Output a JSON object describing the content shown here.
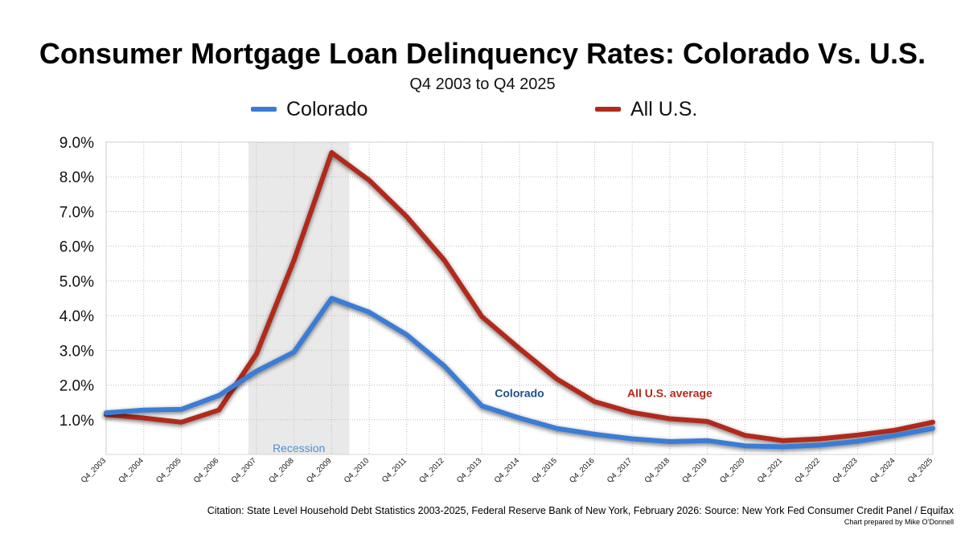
{
  "chart_data": {
    "type": "line",
    "title": "Consumer Mortgage Loan Delinquency Rates: Colorado Vs. U.S.",
    "subtitle": "Q4 2003 to Q4 2025",
    "categories": [
      "Q4_2003",
      "Q4_2004",
      "Q4_2005",
      "Q4_2006",
      "Q4_2007",
      "Q4_2008",
      "Q4_2009",
      "Q4_2010",
      "Q4_2011",
      "Q4_2012",
      "Q4_2013",
      "Q4_2014",
      "Q4_2015",
      "Q4_2016",
      "Q4_2017",
      "Q4_2018",
      "Q4_2019",
      "Q4_2020",
      "Q4_2021",
      "Q4_2022",
      "Q4_2023",
      "Q4_2024",
      "Q4_2025"
    ],
    "series": [
      {
        "name": "Colorado",
        "color": "#3a7bd5",
        "values": [
          1.2,
          1.28,
          1.3,
          1.7,
          2.4,
          2.95,
          4.5,
          4.1,
          3.45,
          2.55,
          1.4,
          1.05,
          0.75,
          0.58,
          0.45,
          0.37,
          0.4,
          0.25,
          0.22,
          0.27,
          0.38,
          0.55,
          0.75
        ]
      },
      {
        "name": "All U.S.",
        "color": "#b02a1a",
        "values": [
          1.15,
          1.05,
          0.93,
          1.28,
          2.9,
          5.6,
          8.7,
          7.9,
          6.85,
          5.6,
          3.97,
          3.05,
          2.17,
          1.52,
          1.21,
          1.03,
          0.95,
          0.55,
          0.4,
          0.45,
          0.56,
          0.7,
          0.93
        ]
      }
    ],
    "yticks": [
      "1.0%",
      "2.0%",
      "3.0%",
      "4.0%",
      "5.0%",
      "6.0%",
      "7.0%",
      "8.0%",
      "9.0%"
    ],
    "ylim": [
      0,
      9
    ],
    "legend": [
      {
        "label": "Colorado",
        "color": "#3a7bd5"
      },
      {
        "label": "All U.S.",
        "color": "#b02a1a"
      }
    ],
    "recession": {
      "label": "Recession",
      "start": "Q4_2007",
      "end": "Q4_2009",
      "color": "#4a90d9"
    },
    "annotations": [
      {
        "text": "Colorado",
        "x": "Q4_2014",
        "y": 1.65,
        "color": "#1f4e8c"
      },
      {
        "text": "All U.S. average",
        "x": "Q4_2018",
        "y": 1.65,
        "color": "#b02a1a"
      }
    ],
    "citation": "Citation: State Level Household Debt Statistics 2003-2025, Federal Reserve Bank of New York, February 2026: Source: New York Fed Consumer Credit Panel / Equifax",
    "credit": "Chart prepared by Mike O’Donnell"
  }
}
